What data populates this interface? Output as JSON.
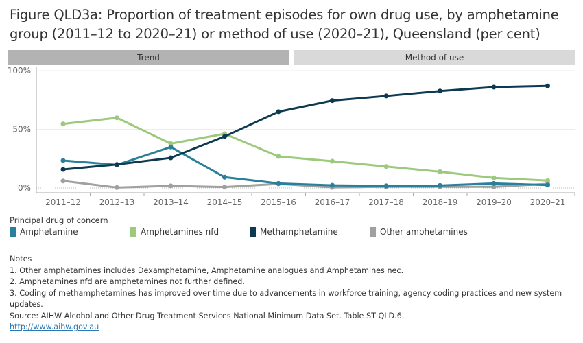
{
  "title": "Figure QLD3a: Proportion of treatment episodes for own drug use, by amphetamine group (2011–12 to 2020–21) or method of use (2020–21), Queensland (per cent)",
  "tabs": {
    "trend": "Trend",
    "method": "Method of use"
  },
  "legend": {
    "title": "Principal drug of concern"
  },
  "chart_data": {
    "type": "line",
    "categories": [
      "2011–12",
      "2012–13",
      "2013–14",
      "2014–15",
      "2015–16",
      "2016–17",
      "2017–18",
      "2018–19",
      "2019–20",
      "2020–21"
    ],
    "ylim": [
      0,
      100
    ],
    "yticks": [
      "0%",
      "50%",
      "100%"
    ],
    "ytick_values": [
      0,
      50,
      100
    ],
    "grid": true,
    "legend_position": "bottom",
    "series": [
      {
        "name": "Amphetamine",
        "color": "#2a7f9a",
        "values": [
          23.4,
          19.7,
          34.9,
          9.2,
          3.9,
          2.3,
          1.8,
          2.1,
          3.9,
          2.5
        ]
      },
      {
        "name": "Amphetamines nfd",
        "color": "#9cc97c",
        "values": [
          54.6,
          59.8,
          37.8,
          46.2,
          26.9,
          22.8,
          18.3,
          13.8,
          8.6,
          6.3
        ]
      },
      {
        "name": "Methamphetamine",
        "color": "#0d3a50",
        "values": [
          15.8,
          20.0,
          25.7,
          43.9,
          65.0,
          74.5,
          78.4,
          82.6,
          86.0,
          87.0
        ]
      },
      {
        "name": "Other amphetamines",
        "color": "#a0a0a0",
        "values": [
          6.0,
          0.4,
          1.8,
          0.8,
          3.5,
          0.5,
          1.0,
          1.0,
          1.0,
          3.5
        ]
      }
    ]
  },
  "notes": {
    "heading": "Notes",
    "lines": [
      "1. Other amphetamines includes Dexamphetamine, Amphetamine analogues and Amphetamines nec.",
      "2. Amphetamines nfd are amphetamines not further defined.",
      "3. Coding of methamphetamines has improved over time due to advancements in workforce training, agency coding practices and new system updates.",
      "Source: AIHW Alcohol and Other Drug Treatment Services National Minimum Data Set. Table ST QLD.6."
    ],
    "link": "http://www.aihw.gov.au"
  }
}
